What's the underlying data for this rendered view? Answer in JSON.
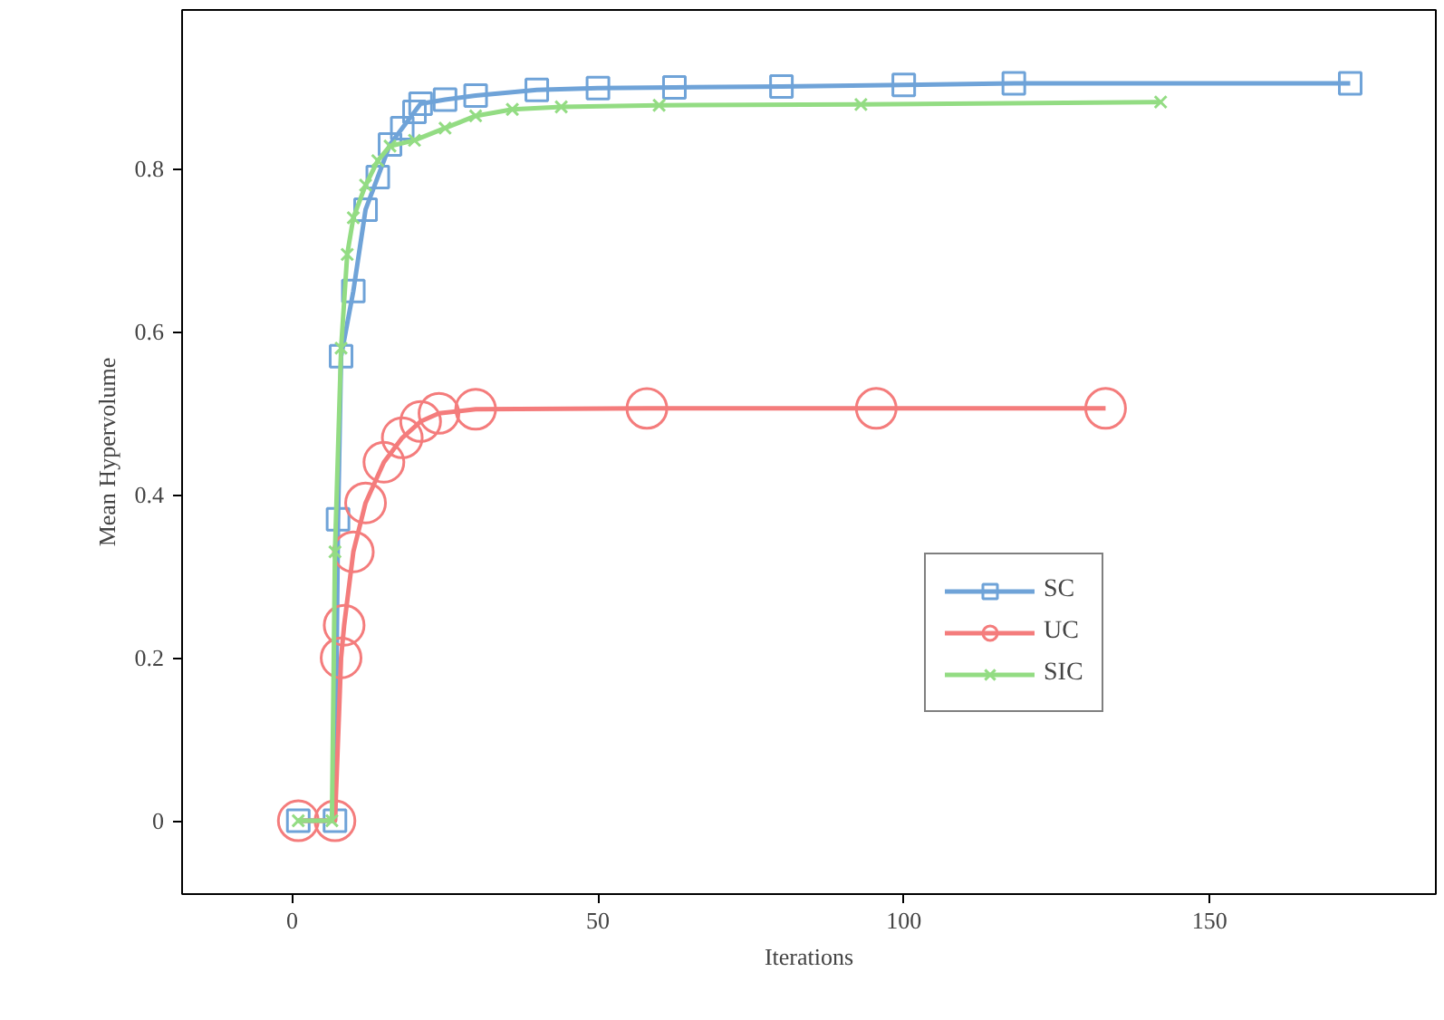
{
  "chart_data": {
    "type": "line",
    "xlabel": "Iterations",
    "ylabel": "Mean Hypervolume",
    "xlim": [
      -18,
      187
    ],
    "ylim": [
      -0.09,
      0.995
    ],
    "xticks": [
      0,
      50,
      100,
      150
    ],
    "yticks": [
      0,
      {
        "value": 0.2,
        "label": "0.2"
      },
      {
        "value": 0.4,
        "label": "0.4"
      },
      {
        "value": 0.6,
        "label": "0.6"
      },
      {
        "value": 0.8,
        "label": "0.8"
      }
    ],
    "grid": false,
    "legend": "right",
    "series": [
      {
        "name": "SC",
        "color": "#6fa3d8",
        "marker": "square",
        "x": [
          1,
          7,
          7.5,
          8,
          10,
          12,
          14,
          16,
          18,
          20,
          21,
          25,
          30,
          40,
          50,
          62.5,
          80,
          100,
          118,
          173
        ],
        "values": [
          0,
          0,
          0.37,
          0.57,
          0.65,
          0.75,
          0.79,
          0.83,
          0.85,
          0.87,
          0.88,
          0.885,
          0.89,
          0.897,
          0.899,
          0.9,
          0.901,
          0.903,
          0.905,
          0.905
        ]
      },
      {
        "name": "UC",
        "color": "#f47c7c",
        "marker": "circle",
        "x": [
          1,
          7,
          8,
          8.5,
          10,
          12,
          15,
          18,
          21,
          24,
          30,
          58,
          95.5,
          133
        ],
        "values": [
          0,
          0,
          0.2,
          0.24,
          0.33,
          0.39,
          0.44,
          0.47,
          0.49,
          0.5,
          0.505,
          0.506,
          0.506,
          0.506
        ]
      },
      {
        "name": "SIC",
        "color": "#93dc83",
        "marker": "cross",
        "x": [
          1,
          6.5,
          7,
          8,
          9,
          10,
          12,
          14,
          16,
          20,
          25,
          30,
          36,
          44,
          60,
          93,
          142
        ],
        "values": [
          0,
          0,
          0.33,
          0.58,
          0.695,
          0.74,
          0.78,
          0.81,
          0.828,
          0.835,
          0.85,
          0.865,
          0.873,
          0.876,
          0.878,
          0.879,
          0.882
        ]
      }
    ]
  }
}
